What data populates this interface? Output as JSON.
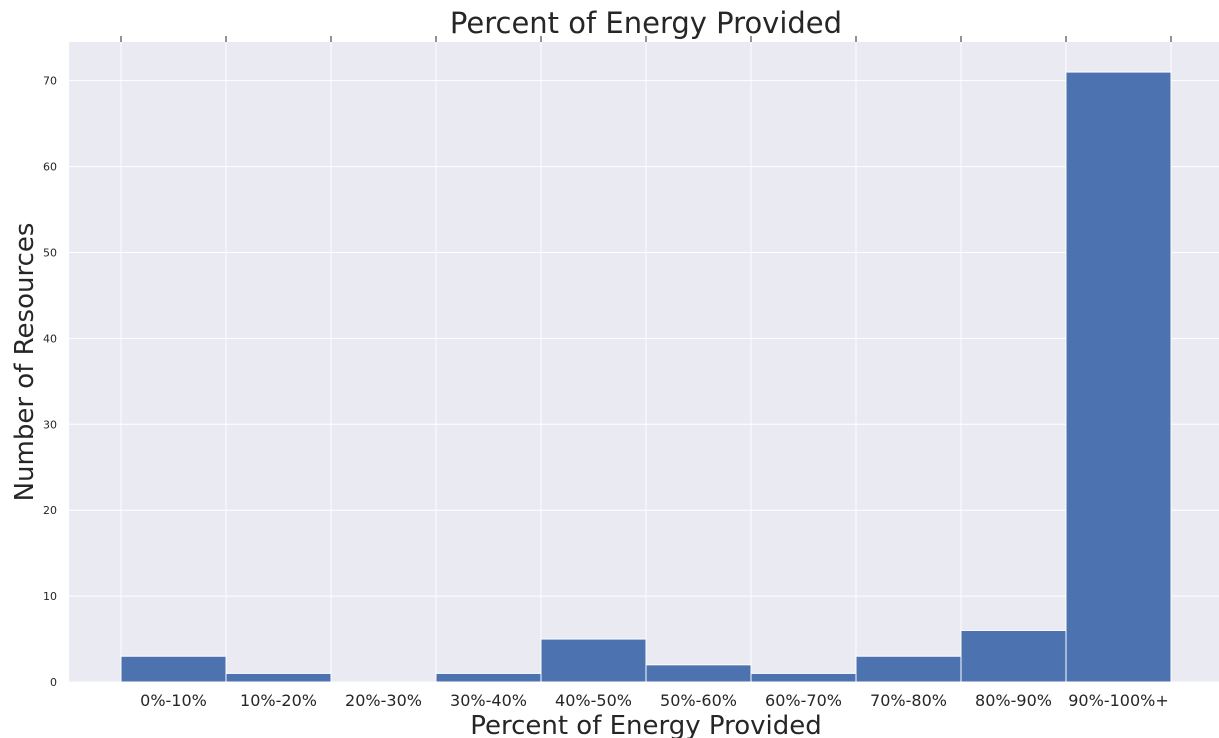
{
  "chart_data": {
    "type": "bar",
    "title": "Percent of Energy Provided",
    "xlabel": "Percent of Energy Provided",
    "ylabel": "Number of Resources",
    "categories": [
      "0%-10%",
      "10%-20%",
      "20%-30%",
      "30%-40%",
      "40%-50%",
      "50%-60%",
      "60%-70%",
      "70%-80%",
      "80%-90%",
      "90%-100%+"
    ],
    "values": [
      3,
      1,
      0,
      1,
      5,
      2,
      1,
      3,
      6,
      71
    ],
    "ylim": [
      0,
      74.5
    ],
    "yticks": [
      0,
      10,
      20,
      30,
      40,
      50,
      60,
      70
    ],
    "grid": true,
    "colors": {
      "bar": "#4c72b0",
      "background": "#eaeaf2",
      "grid": "#ffffff"
    }
  }
}
